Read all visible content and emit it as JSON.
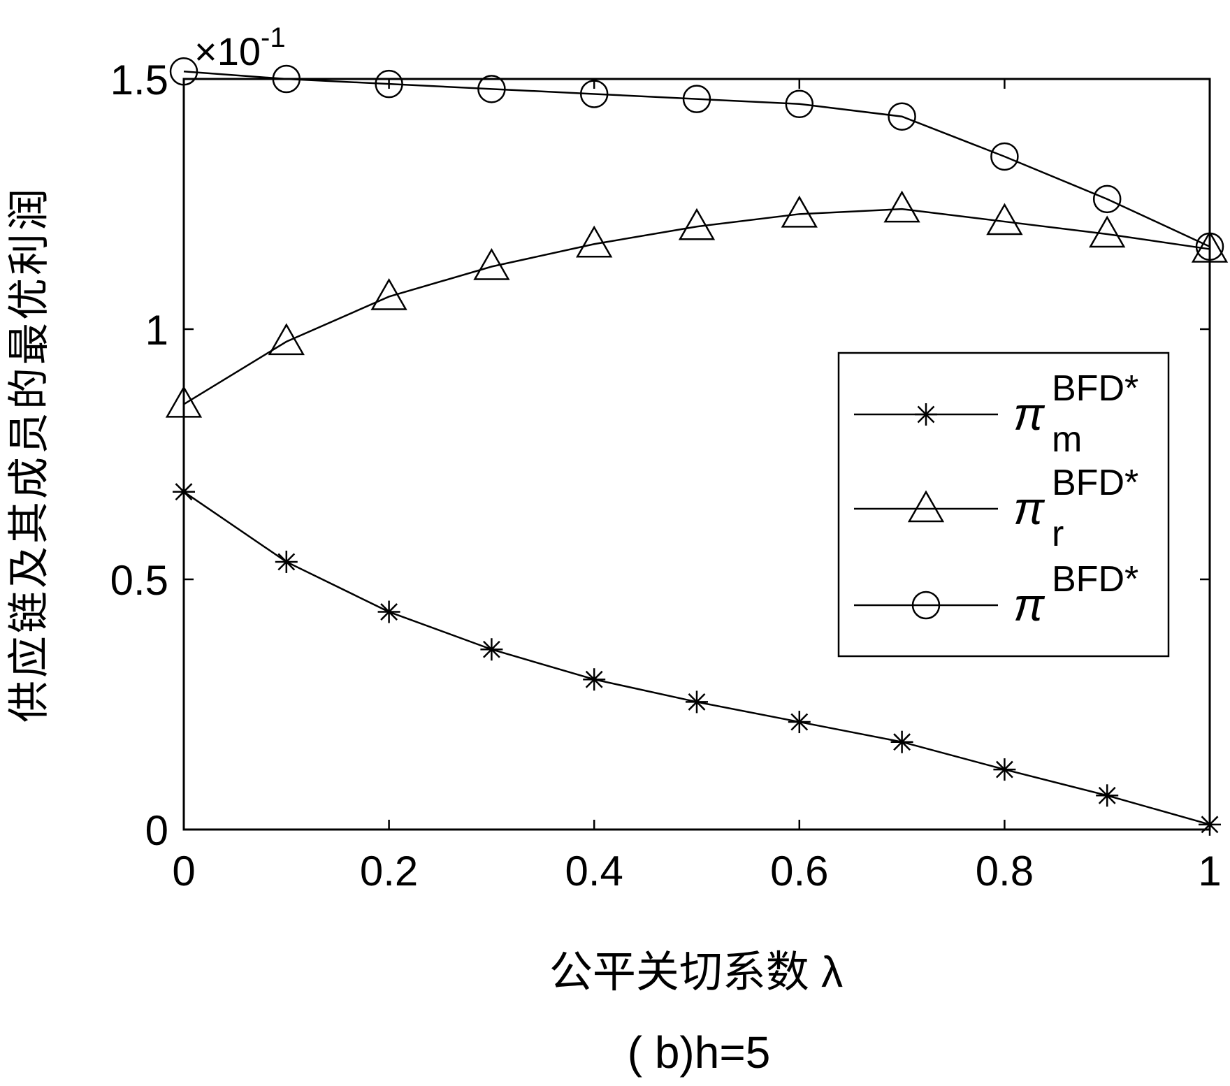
{
  "chart_data": {
    "type": "line",
    "caption": "( b)h=5",
    "xlabel": "公平关切系数 λ",
    "ylabel": "供应链及其成员的最优利润",
    "y_multiplier": "×10",
    "y_multiplier_exp": "-1",
    "xlim": [
      0,
      1
    ],
    "ylim": [
      0,
      1.5
    ],
    "x_ticks": [
      "0",
      "0.2",
      "0.4",
      "0.6",
      "0.8",
      "1"
    ],
    "x_tick_values": [
      0,
      0.2,
      0.4,
      0.6,
      0.8,
      1
    ],
    "y_ticks": [
      "0",
      "0.5",
      "1",
      "1.5"
    ],
    "y_tick_values": [
      0,
      0.5,
      1,
      1.5
    ],
    "legend_position": "center-right",
    "x": [
      0,
      0.1,
      0.2,
      0.3,
      0.4,
      0.5,
      0.6,
      0.7,
      0.8,
      0.9,
      1.0
    ],
    "series": [
      {
        "name": "π_m^BFD*",
        "legend_symbol": "π",
        "legend_sub": "m",
        "legend_sup": "BFD*",
        "marker": "asterisk",
        "values": [
          0.675,
          0.535,
          0.435,
          0.36,
          0.3,
          0.255,
          0.215,
          0.175,
          0.12,
          0.068,
          0.01
        ]
      },
      {
        "name": "π_r^BFD*",
        "legend_symbol": "π",
        "legend_sub": "r",
        "legend_sup": "BFD*",
        "marker": "triangle",
        "values": [
          0.85,
          0.975,
          1.065,
          1.125,
          1.17,
          1.205,
          1.23,
          1.24,
          1.215,
          1.19,
          1.16
        ]
      },
      {
        "name": "π^BFD*",
        "legend_symbol": "π",
        "legend_sub": "",
        "legend_sup": "BFD*",
        "marker": "circle",
        "values": [
          1.515,
          1.5,
          1.49,
          1.48,
          1.47,
          1.46,
          1.45,
          1.425,
          1.345,
          1.26,
          1.165
        ]
      }
    ]
  }
}
